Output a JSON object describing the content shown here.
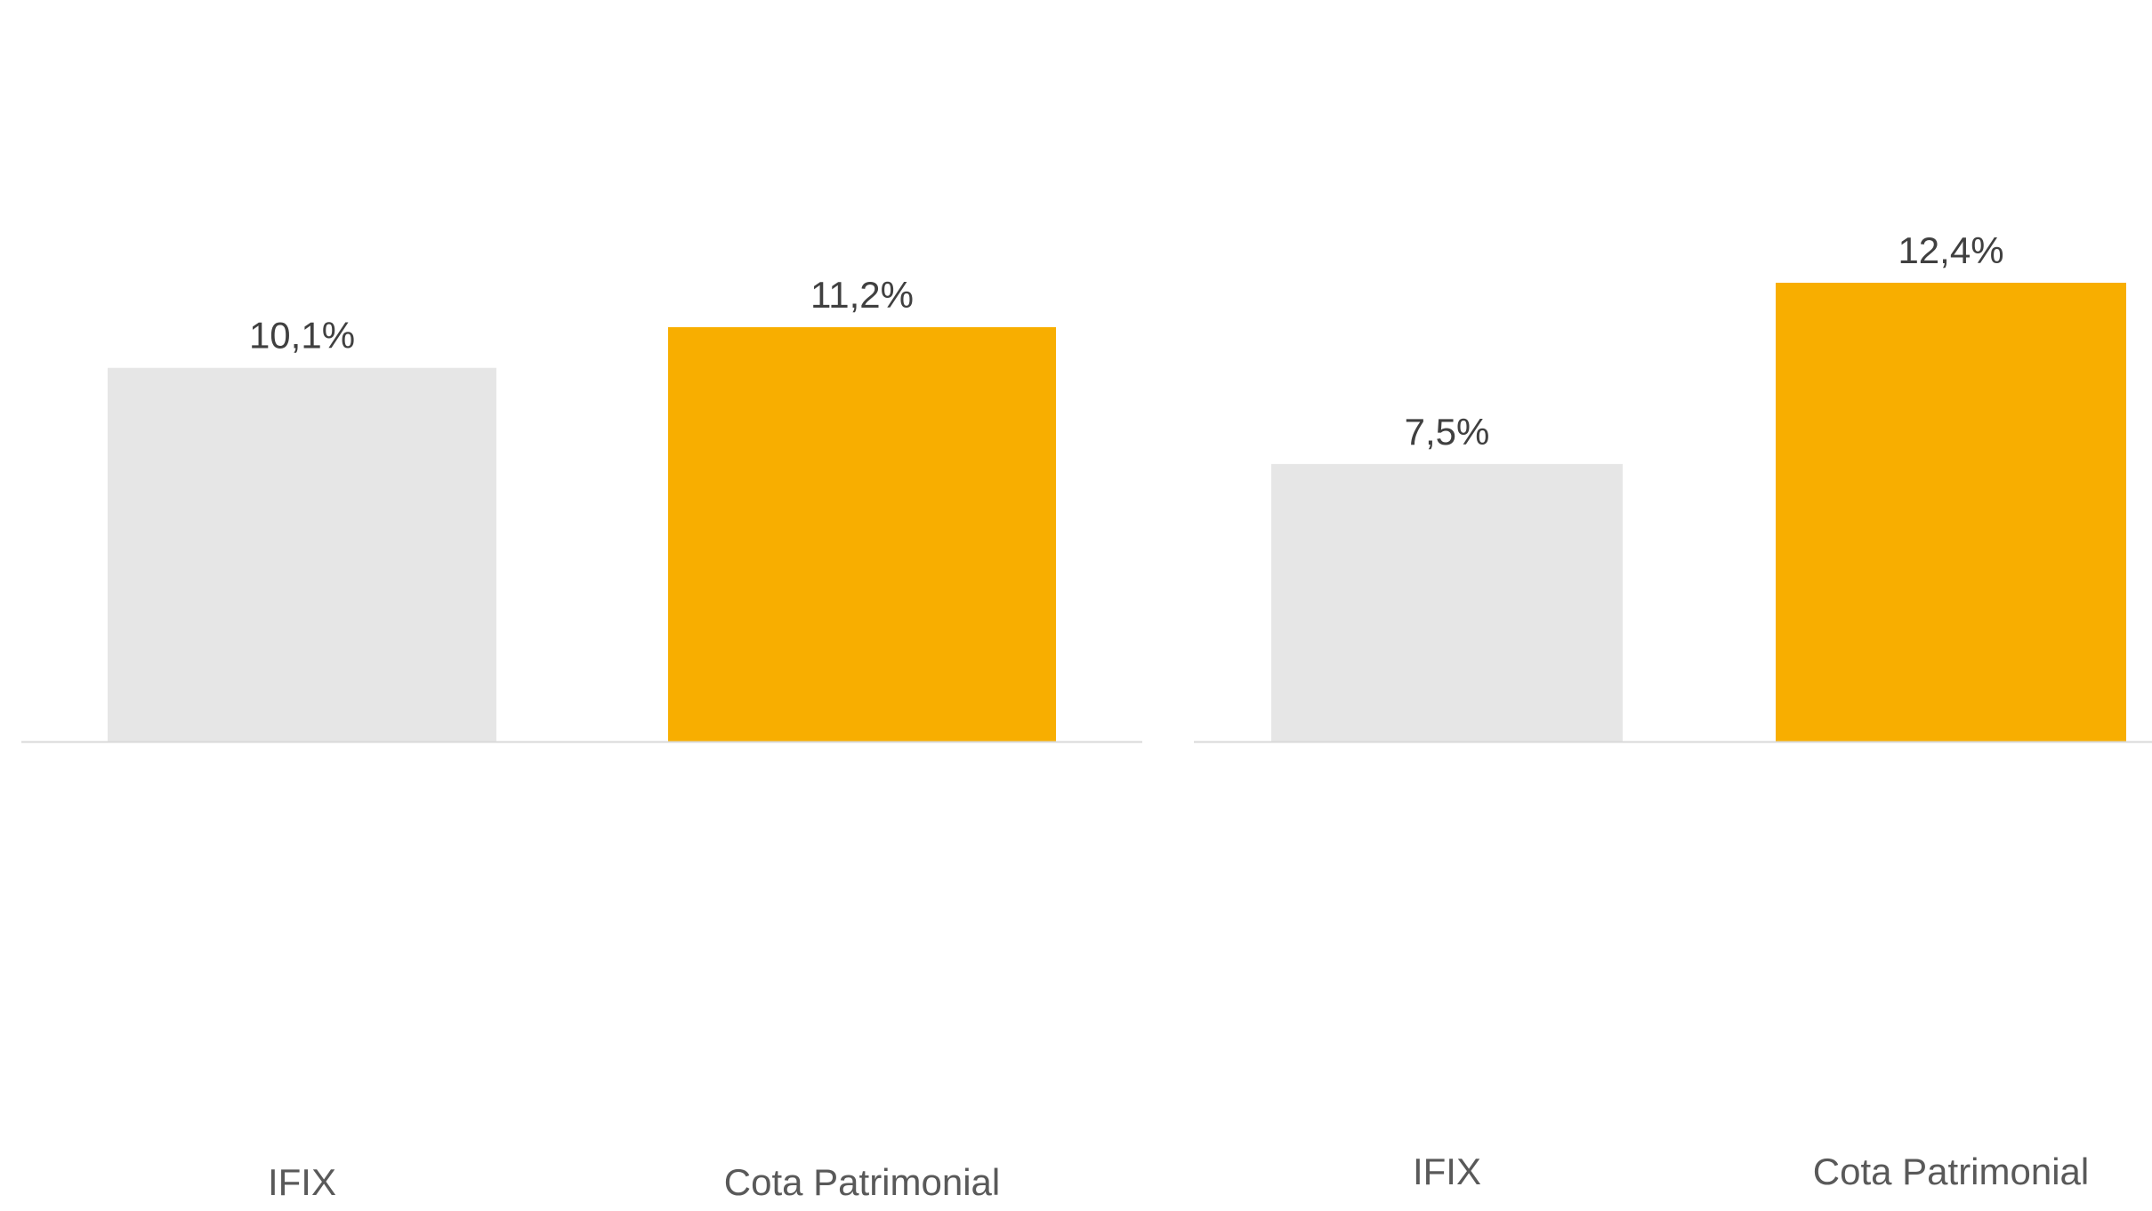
{
  "chart_data": [
    {
      "type": "bar",
      "categories": [
        "IFIX",
        "Cota Patrimonial"
      ],
      "values": [
        10.1,
        11.2
      ],
      "data_labels": [
        "10,1%",
        "11,2%"
      ],
      "ylim": [
        0,
        18.6
      ],
      "grid": false,
      "legend": "none",
      "colors": [
        "#E6E6E6",
        "#F8AE00"
      ]
    },
    {
      "type": "bar",
      "categories": [
        "IFIX",
        "Cota Patrimonial"
      ],
      "values": [
        7.5,
        12.4
      ],
      "data_labels": [
        "7,5%",
        "12,4%"
      ],
      "ylim": [
        0,
        18.6
      ],
      "grid": false,
      "legend": "none",
      "colors": [
        "#E6E6E6",
        "#F8AE00"
      ]
    }
  ],
  "style": {
    "axis_color": "#D9D9D9"
  }
}
